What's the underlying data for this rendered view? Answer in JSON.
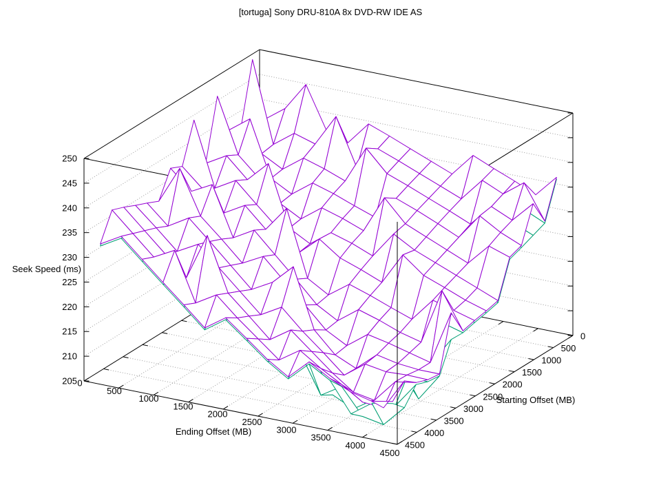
{
  "window": {
    "background": "#ffffff"
  },
  "chart_data": {
    "type": "surface3d-wireframe",
    "title": "[tortuga] Sony DRU-810A 8x DVD-RW IDE AS",
    "xlabel": "Ending Offset (MB)",
    "ylabel": "Starting Offset (MB)",
    "zlabel": "Seek Speed (ms)",
    "xlim": [
      0,
      4500
    ],
    "ylim": [
      0,
      4500
    ],
    "zlim": [
      205,
      250
    ],
    "xticks": [
      0,
      500,
      1000,
      1500,
      2000,
      2500,
      3000,
      3500,
      4000,
      4500
    ],
    "yticks": [
      0,
      500,
      1000,
      1500,
      2000,
      2500,
      3000,
      3500,
      4000,
      4500
    ],
    "zticks": [
      205,
      210,
      215,
      220,
      225,
      230,
      235,
      240,
      245,
      250
    ],
    "grid": "dotted walls and base at every tick",
    "legend": "none",
    "border_color": "#000000",
    "grid_color": "#9a9a9a",
    "x_offsets": [
      150,
      450,
      750,
      1050,
      1350,
      1650,
      1950,
      2250,
      2550,
      2850,
      3150,
      3450,
      3750,
      4050,
      4350
    ],
    "y_offsets": [
      150,
      450,
      750,
      1050,
      1350,
      1650,
      1950,
      2250,
      2550,
      2850,
      3150,
      3450,
      3750,
      4050,
      4350
    ],
    "series": [
      {
        "name": "seek-time-surface",
        "color": "#9400d3",
        "z_rows_by_start_offset": [
          [
            237.0,
            240.1,
            238.8,
            237.2,
            235.7,
            240.4,
            238.8,
            237.1,
            235.4,
            233.7,
            238.3,
            236.5,
            234.8,
            232.9,
            237.3
          ],
          [
            236.6,
            234.3,
            237.4,
            236.1,
            234.5,
            233.0,
            237.7,
            236.1,
            234.4,
            232.7,
            231.0,
            235.6,
            233.7,
            231.8,
            229.9
          ],
          [
            238.1,
            233.9,
            231.6,
            234.7,
            233.4,
            231.8,
            230.3,
            235.0,
            233.4,
            231.7,
            230.0,
            228.2,
            232.6,
            230.7,
            228.9
          ],
          [
            239.3,
            235.4,
            231.2,
            228.9,
            232.0,
            230.7,
            229.1,
            227.6,
            232.3,
            230.7,
            228.9,
            227.0,
            225.2,
            229.7,
            227.9
          ],
          [
            240.6,
            236.6,
            232.7,
            228.5,
            226.2,
            229.3,
            228.0,
            226.4,
            224.9,
            229.5,
            227.7,
            225.9,
            224.1,
            222.4,
            227.0
          ],
          [
            235.5,
            237.9,
            233.9,
            230.0,
            225.8,
            223.5,
            226.6,
            225.3,
            223.6,
            221.9,
            226.5,
            224.8,
            223.1,
            221.4,
            219.7
          ],
          [
            236.7,
            232.8,
            235.2,
            231.2,
            227.3,
            223.1,
            220.8,
            223.8,
            222.3,
            220.6,
            219.0,
            223.7,
            222.1,
            220.4,
            219.1
          ],
          [
            237.8,
            234.0,
            230.1,
            232.5,
            228.5,
            224.6,
            220.3,
            217.8,
            220.8,
            219.4,
            217.8,
            216.3,
            221.0,
            219.8,
            218.6
          ],
          [
            238.9,
            235.1,
            231.3,
            227.4,
            229.8,
            225.7,
            221.6,
            217.3,
            214.9,
            218.0,
            216.7,
            215.1,
            214.0,
            219.2,
            218.0
          ],
          [
            233.7,
            236.2,
            232.4,
            228.6,
            224.6,
            226.8,
            222.7,
            218.7,
            214.5,
            212.2,
            215.3,
            214.4,
            213.3,
            212.2,
            218.1
          ],
          [
            234.8,
            231.0,
            233.5,
            229.6,
            225.6,
            221.6,
            223.9,
            219.9,
            216.0,
            211.8,
            209.9,
            213.5,
            212.6,
            212.2,
            212.2
          ],
          [
            235.8,
            232.1,
            228.2,
            230.5,
            226.6,
            222.7,
            218.8,
            221.2,
            217.2,
            213.7,
            210.0,
            208.1,
            212.4,
            212.6,
            212.5
          ],
          [
            236.9,
            233.0,
            229.1,
            225.2,
            227.6,
            223.8,
            220.0,
            216.1,
            218.9,
            215.4,
            211.9,
            208.9,
            208.1,
            212.7,
            213.4
          ],
          [
            237.8,
            233.9,
            230.0,
            226.2,
            222.4,
            224.9,
            221.1,
            217.7,
            214.3,
            217.1,
            214.3,
            211.9,
            209.2,
            208.9,
            215.2
          ],
          [
            232.4,
            234.8,
            231.0,
            227.2,
            223.5,
            219.7,
            222.6,
            219.3,
            215.9,
            213.2,
            217.1,
            214.6,
            212.7,
            211.7,
            212.5
          ]
        ],
        "spikes_i_j_amp": [
          [
            0,
            1,
            14
          ],
          [
            2,
            0,
            7
          ],
          [
            4,
            1,
            8
          ],
          [
            1,
            3,
            7
          ],
          [
            6,
            2,
            9
          ],
          [
            3,
            5,
            8
          ],
          [
            8,
            4,
            9
          ],
          [
            5,
            7,
            9
          ],
          [
            10,
            6,
            8
          ],
          [
            12,
            3,
            7
          ],
          [
            7,
            10,
            8
          ],
          [
            2,
            8,
            6
          ],
          [
            9,
            5,
            7
          ],
          [
            13,
            8,
            6
          ],
          [
            4,
            12,
            7
          ],
          [
            11,
            11,
            5
          ],
          [
            14,
            2,
            6
          ],
          [
            6,
            6,
            6
          ],
          [
            0,
            6,
            9
          ],
          [
            0,
            4,
            7
          ],
          [
            1,
            9,
            5
          ],
          [
            13,
            1,
            5
          ],
          [
            3,
            13,
            6
          ],
          [
            13,
            4,
            6
          ],
          [
            14,
            9,
            5
          ]
        ]
      },
      {
        "name": "seek-time-minimum-surface",
        "color": "#009e73",
        "offset_below_first_surface": 0.4,
        "dips_i_j_amt": [
          [
            10,
            10,
            3.5
          ],
          [
            11,
            12,
            3.0
          ],
          [
            12,
            11,
            4.0
          ],
          [
            12,
            12,
            2.3
          ],
          [
            13,
            13,
            3.0
          ],
          [
            9,
            10,
            3.5
          ],
          [
            10,
            12,
            4.0
          ],
          [
            13,
            12,
            4.5
          ],
          [
            11,
            10,
            4.0
          ],
          [
            12,
            13,
            2.5
          ],
          [
            14,
            13,
            5.0
          ],
          [
            8,
            9,
            4.0
          ],
          [
            10,
            13,
            5.0
          ],
          [
            13,
            10,
            5.5
          ],
          [
            12,
            14,
            4.0
          ],
          [
            9,
            9,
            2.0
          ],
          [
            11,
            11,
            2.6
          ]
        ]
      }
    ]
  }
}
